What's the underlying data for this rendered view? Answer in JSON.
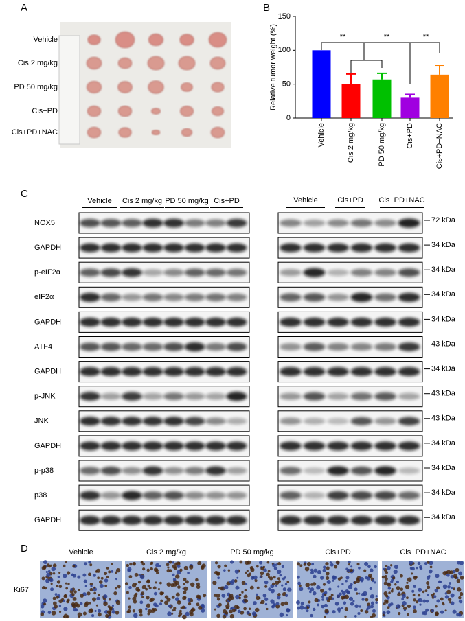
{
  "panel_a": {
    "label": "A",
    "groups": [
      "Vehicle",
      "Cis 2 mg/kg",
      "PD 50 mg/kg",
      "Cis+PD",
      "Cis+PD+NAC"
    ]
  },
  "chart_data": {
    "type": "bar",
    "label": "B",
    "y_label": "Relative tumor weight (%)",
    "categories": [
      "Vehicle",
      "Cis 2 mg/kg",
      "PD 50 mg/kg",
      "Cis+PD",
      "Cis+PD+NAC"
    ],
    "values": [
      100,
      50,
      57,
      30,
      64
    ],
    "errors": [
      null,
      15,
      9,
      5,
      14
    ],
    "colors": [
      "#0000ff",
      "#ff0000",
      "#00c000",
      "#a000e0",
      "#ff8000"
    ],
    "ylim": [
      0,
      150
    ],
    "yticks": [
      0,
      50,
      100,
      150
    ],
    "significance": [
      "**",
      "**",
      "**"
    ]
  },
  "panel_c": {
    "label": "C",
    "left_groups": [
      "Vehicle",
      "Cis 2 mg/kg",
      "PD 50 mg/kg",
      "Cis+PD"
    ],
    "right_groups": [
      "Vehicle",
      "Cis+PD",
      "Cis+PD+NAC"
    ],
    "rows": [
      {
        "protein": "NOX5",
        "size": "72 kDa"
      },
      {
        "protein": "GAPDH",
        "size": "34 kDa"
      },
      {
        "protein": "p-eIF2α",
        "size": "34 kDa"
      },
      {
        "protein": "eIF2α",
        "size": "34 kDa"
      },
      {
        "protein": "GAPDH",
        "size": "34 kDa"
      },
      {
        "protein": "ATF4",
        "size": "43 kDa"
      },
      {
        "protein": "GAPDH",
        "size": "34 kDa"
      },
      {
        "protein": "p-JNK",
        "size": "43 kDa"
      },
      {
        "protein": "JNK",
        "size": "43 kDa"
      },
      {
        "protein": "GAPDH",
        "size": "34 kDa"
      },
      {
        "protein": "p-p38",
        "size": "34 kDa"
      },
      {
        "protein": "p38",
        "size": "34 kDa"
      },
      {
        "protein": "GAPDH",
        "size": "34 kDa"
      }
    ]
  },
  "panel_d": {
    "label": "D",
    "groups": [
      "Vehicle",
      "Cis 2 mg/kg",
      "PD 50 mg/kg",
      "Cis+PD",
      "Cis+PD+NAC"
    ],
    "stain": "Ki67"
  }
}
